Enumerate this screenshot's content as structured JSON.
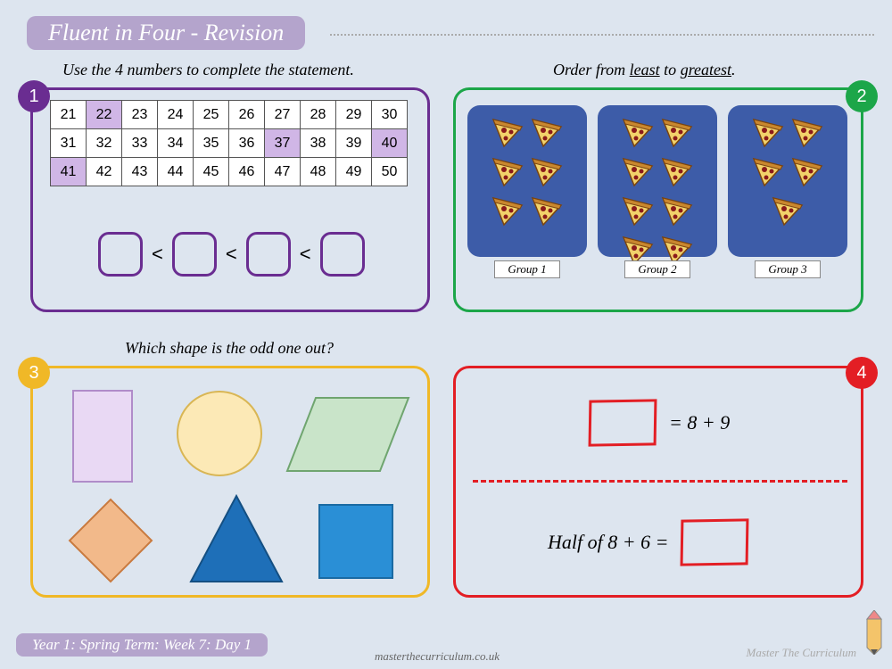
{
  "header": {
    "title": "Fluent in Four - Revision"
  },
  "panel1": {
    "badge": "1",
    "question": "Use the 4 numbers to complete the statement.",
    "border_color": "#6a2d91",
    "grid": {
      "start": 21,
      "end": 50,
      "cols": 10,
      "highlighted": [
        22,
        37,
        40,
        41
      ],
      "highlight_color": "#d0b6e6"
    },
    "comparator": "<"
  },
  "panel2": {
    "badge": "2",
    "question_pre": "Order from ",
    "question_u1": "least",
    "question_mid": " to ",
    "question_u2": "greatest",
    "question_post": ".",
    "border_color": "#1ca649",
    "box_bg": "#3d5ca8",
    "groups": [
      {
        "label": "Group 1",
        "count": 6
      },
      {
        "label": "Group 2",
        "count": 8
      },
      {
        "label": "Group 3",
        "count": 5
      }
    ]
  },
  "panel3": {
    "badge": "3",
    "question": "Which shape is the odd one out?",
    "border_color": "#f0b827",
    "shapes": [
      {
        "type": "rect",
        "fill": "#e9d9f4",
        "stroke": "#b08cc9"
      },
      {
        "type": "circle",
        "fill": "#fce9b6",
        "stroke": "#d9b654"
      },
      {
        "type": "parallelogram",
        "fill": "#c9e4c9",
        "stroke": "#6fa56f"
      },
      {
        "type": "diamond",
        "fill": "#f2b98a",
        "stroke": "#c97a3f"
      },
      {
        "type": "triangle",
        "fill": "#1e6fb8",
        "stroke": "#144f82"
      },
      {
        "type": "square",
        "fill": "#2a8fd6",
        "stroke": "#1a6aa3"
      }
    ]
  },
  "panel4": {
    "badge": "4",
    "border_color": "#e31e24",
    "eq1_text": "= 8 + 9",
    "eq2_text": "Half of 8 + 6 ="
  },
  "footer": {
    "label": "Year 1: Spring Term: Week 7: Day 1",
    "url": "masterthecurriculum.co.uk",
    "brand": "Master The Curriculum"
  }
}
